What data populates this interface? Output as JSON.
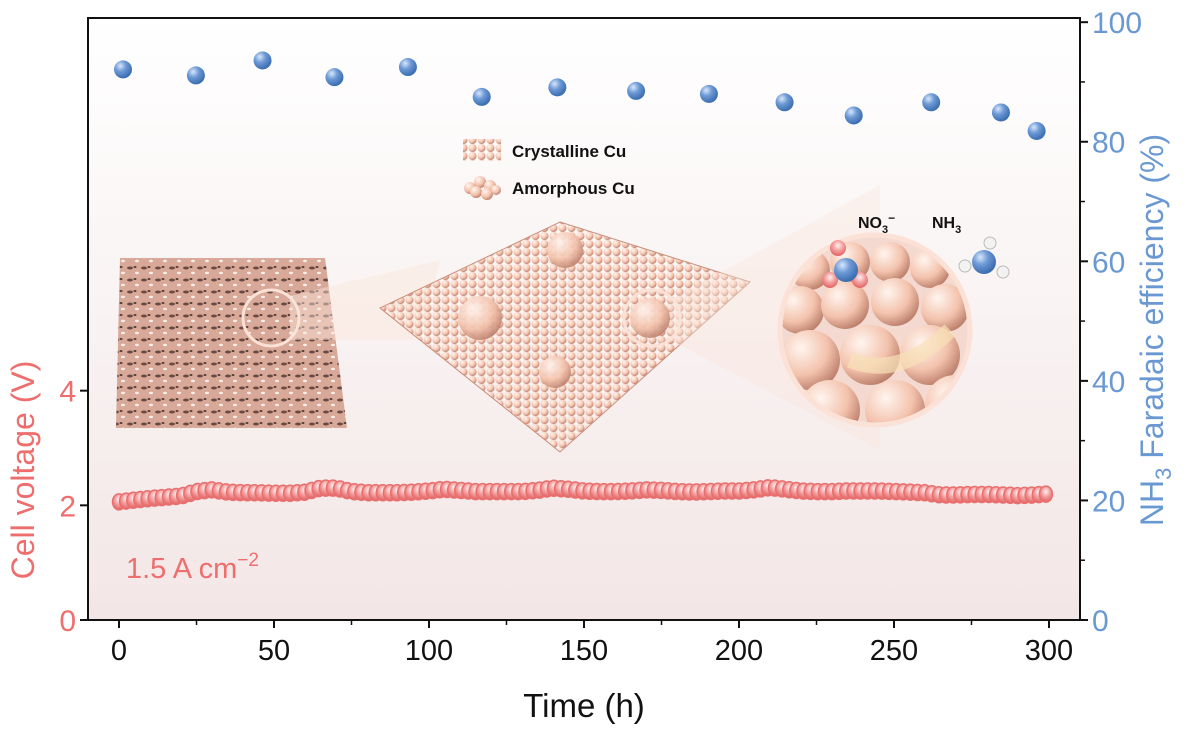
{
  "chart_data": {
    "type": "scatter",
    "xlabel": "Time (h)",
    "ylabel_left": "Cell voltage (V)",
    "ylabel_right": {
      "prefix": "NH",
      "sub": "3",
      "suffix": " Faradaic efficiency (%)"
    },
    "xlim": [
      -10,
      310
    ],
    "ylim_left": [
      0,
      10.5
    ],
    "ylim_right": [
      0,
      100.7
    ],
    "x_ticks": [
      "0",
      "50",
      "100",
      "150",
      "200",
      "250",
      "300"
    ],
    "y_left_ticks": [
      "0",
      "2",
      "4"
    ],
    "y_right_ticks": [
      "0",
      "20",
      "40",
      "60",
      "80",
      "100"
    ],
    "grid": false,
    "annotation": {
      "text": "1.5 A cm",
      "sup": "−2"
    },
    "colors": {
      "voltage": "#e96f6f",
      "efficiency": "#5f8fcf",
      "left_axis": "#ee6e6e",
      "right_axis": "#6a98d2"
    },
    "series": [
      {
        "axis": "left",
        "x": [
          0,
          5,
          10,
          15,
          20,
          25,
          30,
          35,
          40,
          45,
          50,
          55,
          60,
          65,
          70,
          75,
          80,
          85,
          90,
          95,
          100,
          105,
          110,
          115,
          120,
          125,
          130,
          135,
          140,
          145,
          150,
          155,
          160,
          165,
          170,
          175,
          180,
          185,
          190,
          195,
          200,
          205,
          210,
          215,
          220,
          225,
          230,
          235,
          240,
          245,
          250,
          255,
          260,
          265,
          270,
          275,
          280,
          285,
          290,
          295,
          300
        ],
        "values": [
          2.06,
          2.09,
          2.12,
          2.14,
          2.16,
          2.24,
          2.27,
          2.23,
          2.22,
          2.22,
          2.21,
          2.21,
          2.23,
          2.3,
          2.3,
          2.24,
          2.22,
          2.22,
          2.22,
          2.23,
          2.25,
          2.28,
          2.26,
          2.24,
          2.24,
          2.24,
          2.24,
          2.26,
          2.3,
          2.28,
          2.25,
          2.24,
          2.24,
          2.25,
          2.27,
          2.26,
          2.24,
          2.23,
          2.24,
          2.25,
          2.25,
          2.27,
          2.31,
          2.28,
          2.25,
          2.24,
          2.24,
          2.25,
          2.25,
          2.25,
          2.24,
          2.23,
          2.22,
          2.18,
          2.18,
          2.19,
          2.19,
          2.18,
          2.17,
          2.18,
          2.2
        ]
      },
      {
        "axis": "right",
        "x": [
          1.3,
          24.8,
          46.3,
          69.5,
          93.2,
          117,
          141.4,
          166.8,
          190.3,
          214.7,
          237,
          262,
          284.5,
          296
        ],
        "values": [
          92.1,
          91.1,
          93.6,
          90.8,
          92.5,
          87.5,
          89.1,
          88.5,
          88.0,
          86.6,
          84.4,
          86.6,
          84.9,
          81.8
        ]
      }
    ]
  },
  "inset": {
    "legend": [
      {
        "label": "Crystalline Cu",
        "icon": "crystalline-cu-icon"
      },
      {
        "label": "Amorphous Cu",
        "icon": "amorphous-cu-icon"
      }
    ],
    "molecule_labels": [
      {
        "prefix": "NO",
        "sub": "3",
        "sup": "−"
      },
      {
        "prefix": "NH",
        "sub": "3",
        "sup": ""
      }
    ]
  }
}
